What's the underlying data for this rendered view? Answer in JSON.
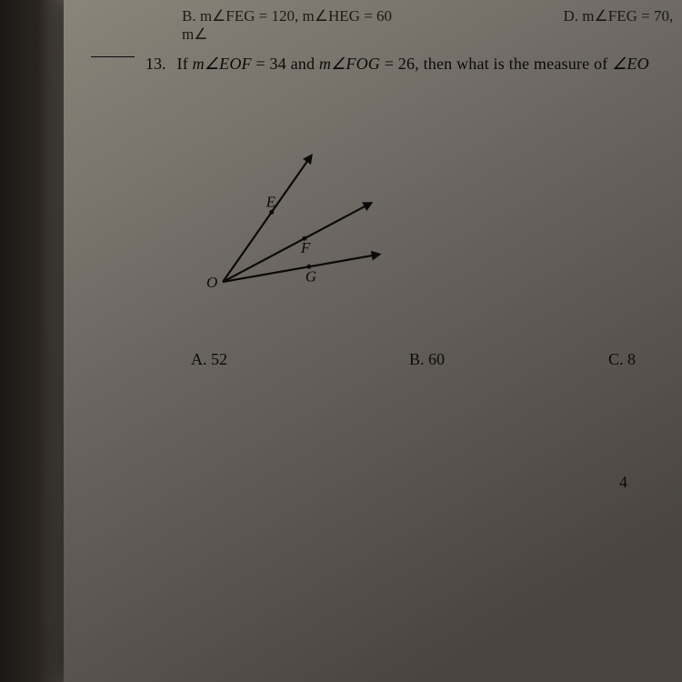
{
  "top_fragment": {
    "left": "B.  m∠FEG = 120, m∠HEG = 60",
    "right": "D.  m∠FEG = 70, m∠"
  },
  "question": {
    "number": "13.",
    "text_prefix": "If ",
    "angle1_label": "m∠EOF",
    "eq1": " = 34 and ",
    "angle2_label": "m∠FOG",
    "eq2": " = 26, then what is the measure of ",
    "angle3_label": "∠EO",
    "suffix": ""
  },
  "diagram": {
    "vertex_label": "O",
    "rays": [
      {
        "label": "E",
        "angle_deg": -55,
        "length": 170
      },
      {
        "label": "F",
        "angle_deg": -28,
        "length": 185
      },
      {
        "label": "G",
        "angle_deg": -10,
        "length": 175
      }
    ],
    "stroke": "#0a0a0a",
    "stroke_width": 2.2
  },
  "options": {
    "a": "A.  52",
    "b": "B.  60",
    "c": "C.  8"
  },
  "stray_number": "4"
}
